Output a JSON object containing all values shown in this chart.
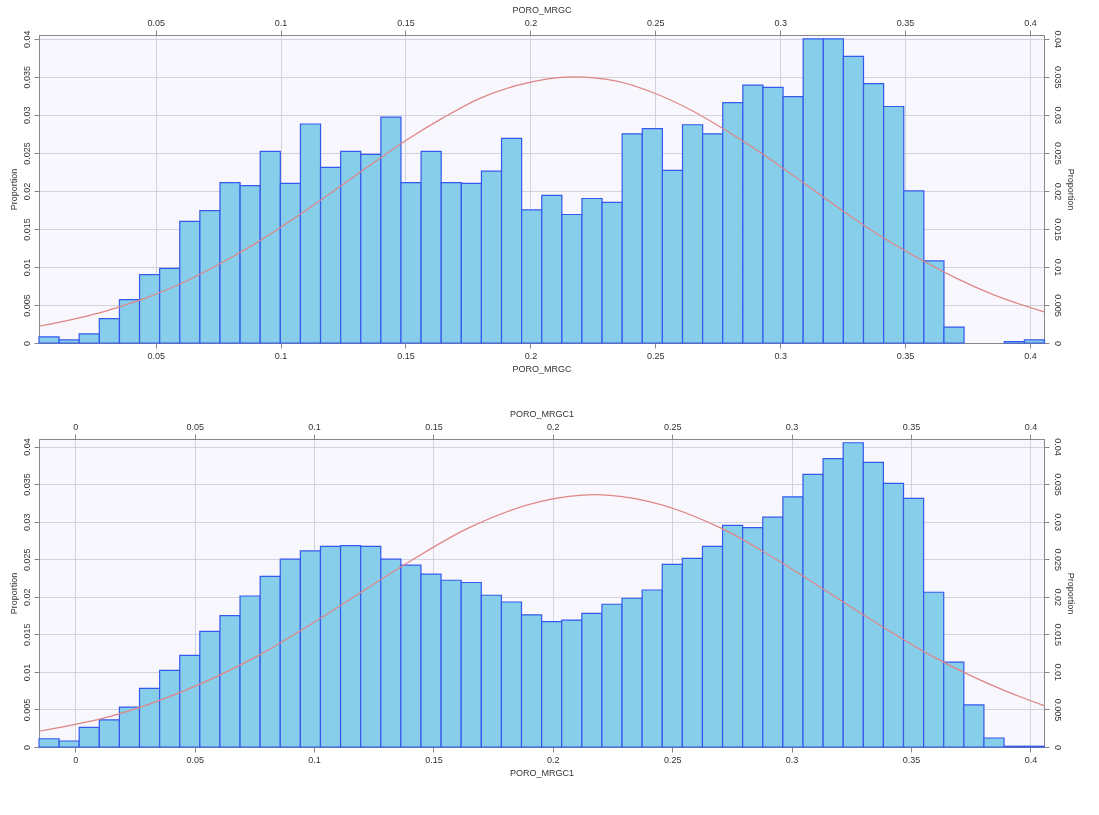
{
  "chart_data": [
    {
      "type": "histogram",
      "xlabel": "PORO_MRGC",
      "x2label": "PORO_MRGC",
      "ylabel": "Proportion",
      "y2label": "Proportion",
      "color": "#87ceea",
      "grid": true,
      "bins": [
        0.0033,
        0.01135,
        0.0194,
        0.02745,
        0.0355,
        0.04355,
        0.0516,
        0.05965,
        0.0677,
        0.07575,
        0.0838,
        0.09185,
        0.0999,
        0.10795,
        0.116,
        0.12405,
        0.1321,
        0.14015,
        0.1482,
        0.15625,
        0.1643,
        0.17235,
        0.1804,
        0.18845,
        0.1965,
        0.20455,
        0.2126,
        0.22065,
        0.2287,
        0.23675,
        0.2448,
        0.25285,
        0.2609,
        0.26895,
        0.277,
        0.28505,
        0.2931,
        0.30115,
        0.3092,
        0.31725,
        0.3253,
        0.33335,
        0.3414,
        0.34945,
        0.3575,
        0.36555,
        0.3736,
        0.38165,
        0.3897,
        0.39775,
        0.4058
      ],
      "values": [
        0.0008,
        0.0004,
        0.0012,
        0.0032,
        0.0057,
        0.009,
        0.0098,
        0.016,
        0.0174,
        0.0211,
        0.0207,
        0.0252,
        0.021,
        0.0288,
        0.0231,
        0.0252,
        0.0248,
        0.0297,
        0.0211,
        0.0252,
        0.0211,
        0.021,
        0.0226,
        0.0269,
        0.0175,
        0.0194,
        0.0169,
        0.019,
        0.0185,
        0.0275,
        0.0282,
        0.0227,
        0.0287,
        0.0275,
        0.0316,
        0.0339,
        0.0336,
        0.0324,
        0.04,
        0.04,
        0.0377,
        0.0341,
        0.0311,
        0.02,
        0.0108,
        0.0021,
        0,
        0,
        0.0002,
        0.0004
      ],
      "series": [
        {
          "type": "line",
          "color": "#e08585",
          "x": [
            0.0033,
            0.03,
            0.045,
            0.06,
            0.075,
            0.09,
            0.105,
            0.12,
            0.135,
            0.15,
            0.165,
            0.18,
            0.195,
            0.2175,
            0.235,
            0.25,
            0.265,
            0.28,
            0.295,
            0.31,
            0.325,
            0.34,
            0.355,
            0.37,
            0.385,
            0.4056
          ],
          "values": [
            0.0022,
            0.0042,
            0.0058,
            0.0078,
            0.0103,
            0.0131,
            0.0163,
            0.0197,
            0.0232,
            0.0266,
            0.0296,
            0.0322,
            0.0339,
            0.035,
            0.0344,
            0.0328,
            0.0305,
            0.0276,
            0.0244,
            0.0209,
            0.0174,
            0.0141,
            0.0112,
            0.0086,
            0.0064,
            0.0041
          ]
        }
      ],
      "xlim": [
        0.0033,
        0.4056
      ],
      "xticks": [
        0.05,
        0.1,
        0.15,
        0.2,
        0.25,
        0.3,
        0.35,
        0.4
      ],
      "x2lim": [
        0.0033,
        0.4056
      ],
      "x2ticks": [
        0.05,
        0.1,
        0.15,
        0.2,
        0.25,
        0.3,
        0.35,
        0.4
      ],
      "ylim": [
        0,
        0.0405
      ],
      "yticks": [
        0,
        0.005,
        0.01,
        0.015,
        0.02,
        0.025,
        0.03,
        0.035,
        0.04
      ],
      "y2lim": [
        0,
        0.0405
      ],
      "y2ticks": [
        0,
        0.005,
        0.01,
        0.015,
        0.02,
        0.025,
        0.03,
        0.035,
        0.04
      ]
    },
    {
      "type": "histogram",
      "xlabel": "PORO_MRGC1",
      "x2label": "PORO_MRGC1",
      "ylabel": "Proportion",
      "y2label": "Proportion",
      "color": "#87ceea",
      "grid": true,
      "bins": [
        -0.0152,
        -0.00678,
        0.00164,
        0.01006,
        0.01848,
        0.0269,
        0.03532,
        0.04374,
        0.05216,
        0.06058,
        0.069,
        0.07742,
        0.08584,
        0.09426,
        0.10268,
        0.1111,
        0.11952,
        0.12794,
        0.13636,
        0.14478,
        0.1532,
        0.16162,
        0.17004,
        0.17846,
        0.18688,
        0.1953,
        0.20372,
        0.21214,
        0.22056,
        0.22898,
        0.2374,
        0.24582,
        0.25424,
        0.26266,
        0.27108,
        0.2795,
        0.28792,
        0.29634,
        0.30476,
        0.31318,
        0.3216,
        0.33002,
        0.33844,
        0.34686,
        0.35528,
        0.3637,
        0.37212,
        0.38054,
        0.38896,
        0.39738,
        0.4058
      ],
      "values": [
        0.0011,
        0.0008,
        0.0026,
        0.0036,
        0.0053,
        0.0078,
        0.0102,
        0.0122,
        0.0154,
        0.0175,
        0.0201,
        0.0227,
        0.025,
        0.0261,
        0.0267,
        0.0268,
        0.0267,
        0.025,
        0.0242,
        0.023,
        0.0222,
        0.0219,
        0.0202,
        0.0193,
        0.0176,
        0.0167,
        0.0169,
        0.0178,
        0.019,
        0.0198,
        0.0209,
        0.0243,
        0.0251,
        0.0267,
        0.0295,
        0.0292,
        0.0306,
        0.0333,
        0.0363,
        0.0384,
        0.0405,
        0.0379,
        0.0351,
        0.0331,
        0.0206,
        0.0113,
        0.0056,
        0.0012,
        0.0001,
        0.0001
      ],
      "series": [
        {
          "type": "line",
          "color": "#e08585",
          "x": [
            -0.0152,
            0.015,
            0.045,
            0.075,
            0.105,
            0.135,
            0.165,
            0.195,
            0.2175,
            0.24,
            0.27,
            0.3,
            0.33,
            0.36,
            0.39,
            0.4057
          ],
          "values": [
            0.0021,
            0.0041,
            0.0074,
            0.0119,
            0.0176,
            0.0237,
            0.0292,
            0.0327,
            0.0336,
            0.0327,
            0.0292,
            0.0237,
            0.0176,
            0.0119,
            0.0074,
            0.0055
          ]
        }
      ],
      "xlim": [
        -0.0152,
        0.4057
      ],
      "xticks": [
        0,
        0.05,
        0.1,
        0.15,
        0.2,
        0.25,
        0.3,
        0.35,
        0.4
      ],
      "x2lim": [
        -0.0152,
        0.4057
      ],
      "x2ticks": [
        0,
        0.05,
        0.1,
        0.15,
        0.2,
        0.25,
        0.3,
        0.35,
        0.4
      ],
      "ylim": [
        0,
        0.041
      ],
      "yticks": [
        0,
        0.005,
        0.01,
        0.015,
        0.02,
        0.025,
        0.03,
        0.035,
        0.04
      ],
      "y2lim": [
        0,
        0.041
      ],
      "y2ticks": [
        0,
        0.005,
        0.01,
        0.015,
        0.02,
        0.025,
        0.03,
        0.035,
        0.04
      ]
    }
  ]
}
